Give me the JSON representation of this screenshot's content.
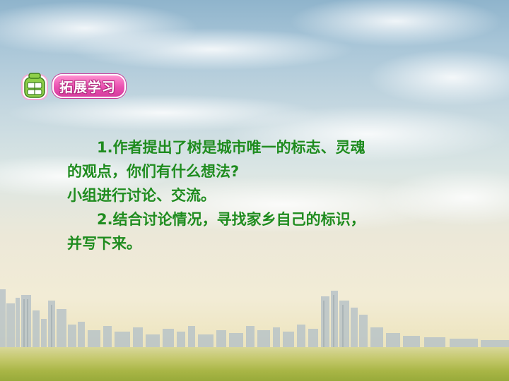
{
  "slide": {
    "section_title": "拓展学习",
    "section_icon": "backpack-icon",
    "paragraphs": [
      "1.作者提出了树是城市唯一的标志、灵魂",
      "的观点，你们有什么想法?",
      "小组进行讨论、交流。",
      "2.结合讨论情况，寻找家乡自己的标识，",
      "并写下来。"
    ]
  },
  "colors": {
    "text": "#1f8c1f",
    "title_bg": "#e94fb0",
    "icon_green": "#7cc43f"
  }
}
